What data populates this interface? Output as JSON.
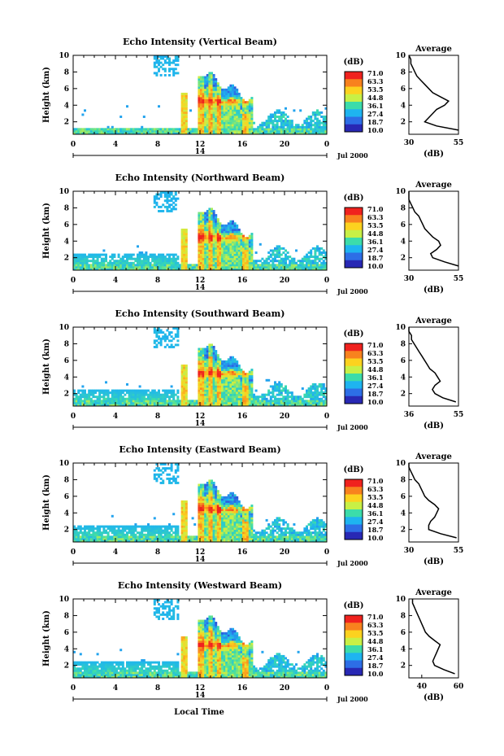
{
  "figure": {
    "xlabel": "Local Time",
    "date_label": "Jul 2000",
    "day_label": "14"
  },
  "colorbar": {
    "unit": "(dB)",
    "ticks": [
      "71.0",
      "63.3",
      "53.5",
      "44.8",
      "36.1",
      "27.4",
      "18.7",
      "10.0"
    ],
    "colors": [
      "#f0221e",
      "#f8821e",
      "#fcd21f",
      "#c8f046",
      "#3cdcaa",
      "#1eb4f0",
      "#2d6ee6",
      "#2828b4"
    ]
  },
  "chart_data": [
    {
      "type": "heatmap",
      "title": "Echo Intensity (Vertical Beam)",
      "ylabel": "Height (km)",
      "x_ticks": [
        "0",
        "4",
        "8",
        "12",
        "16",
        "20",
        "0"
      ],
      "xlim": [
        0,
        24
      ],
      "ylim": [
        0.5,
        10
      ],
      "y_ticks": [
        "2",
        "4",
        "6",
        "8",
        "10"
      ],
      "profile": {
        "title": "Average",
        "xlabel": "(dB)",
        "x_ticks": [
          "30",
          "55"
        ],
        "xlim": [
          30,
          55
        ],
        "heights": [
          1,
          1.5,
          2,
          2.5,
          3,
          3.5,
          4,
          4.5,
          5,
          5.5,
          6,
          6.5,
          7,
          7.5,
          8,
          8.5,
          9,
          9.5,
          10
        ],
        "values": [
          55,
          44,
          38,
          40,
          42,
          44,
          48,
          50,
          46,
          42,
          40,
          38,
          36,
          34,
          33,
          32,
          31,
          31,
          30
        ]
      }
    },
    {
      "type": "heatmap",
      "title": "Echo Intensity (Northward Beam)",
      "ylabel": "Height (km)",
      "x_ticks": [
        "0",
        "4",
        "8",
        "12",
        "16",
        "20",
        "0"
      ],
      "xlim": [
        0,
        24
      ],
      "ylim": [
        0.5,
        10
      ],
      "y_ticks": [
        "2",
        "4",
        "6",
        "8",
        "10"
      ],
      "profile": {
        "title": "Average",
        "xlabel": "(dB)",
        "x_ticks": [
          "30",
          "55"
        ],
        "xlim": [
          30,
          55
        ],
        "heights": [
          1,
          1.5,
          2,
          2.5,
          3,
          3.5,
          4,
          4.5,
          5,
          5.5,
          6,
          6.5,
          7,
          7.5,
          8,
          8.5,
          9,
          9.5,
          10
        ],
        "values": [
          55,
          48,
          42,
          41,
          44,
          46,
          45,
          42,
          40,
          38,
          37,
          36,
          35,
          33,
          32,
          31,
          30,
          30,
          30
        ]
      }
    },
    {
      "type": "heatmap",
      "title": "Echo Intensity (Southward Beam)",
      "ylabel": "Height (km)",
      "x_ticks": [
        "0",
        "4",
        "8",
        "12",
        "16",
        "20",
        "0"
      ],
      "xlim": [
        0,
        24
      ],
      "ylim": [
        0.5,
        10
      ],
      "y_ticks": [
        "2",
        "4",
        "6",
        "8",
        "10"
      ],
      "profile": {
        "title": "Average",
        "xlabel": "(dB)",
        "x_ticks": [
          "36",
          "55"
        ],
        "xlim": [
          36,
          55
        ],
        "heights": [
          1,
          1.5,
          2,
          2.5,
          3,
          3.5,
          4,
          4.5,
          5,
          5.5,
          6,
          6.5,
          7,
          7.5,
          8,
          8.5,
          9,
          9.5,
          10
        ],
        "values": [
          54,
          49,
          46,
          45,
          46,
          48,
          47,
          46,
          44,
          43,
          42,
          41,
          40,
          39,
          38,
          37,
          37,
          36,
          36
        ]
      }
    },
    {
      "type": "heatmap",
      "title": "Echo Intensity (Eastward Beam)",
      "ylabel": "Height (km)",
      "x_ticks": [
        "0",
        "4",
        "8",
        "12",
        "16",
        "20",
        "0"
      ],
      "xlim": [
        0,
        24
      ],
      "ylim": [
        0.5,
        10
      ],
      "y_ticks": [
        "2",
        "4",
        "6",
        "8",
        "10"
      ],
      "profile": {
        "title": "Average",
        "xlabel": "(dB)",
        "x_ticks": [
          "30",
          "55"
        ],
        "xlim": [
          30,
          55
        ],
        "heights": [
          1,
          1.5,
          2,
          2.5,
          3,
          3.5,
          4,
          4.5,
          5,
          5.5,
          6,
          6.5,
          7,
          7.5,
          8,
          8.5,
          9,
          9.5,
          10
        ],
        "values": [
          54,
          46,
          40,
          40,
          41,
          43,
          44,
          45,
          43,
          40,
          38,
          37,
          36,
          35,
          33,
          32,
          31,
          30,
          30
        ]
      }
    },
    {
      "type": "heatmap",
      "title": "Echo Intensity (Westward Beam)",
      "ylabel": "Height (km)",
      "x_ticks": [
        "0",
        "4",
        "8",
        "12",
        "16",
        "20",
        "0"
      ],
      "xlim": [
        0,
        24
      ],
      "ylim": [
        0.5,
        10
      ],
      "y_ticks": [
        "2",
        "4",
        "6",
        "8",
        "10"
      ],
      "profile": {
        "title": "Average",
        "xlabel": "(dB)",
        "x_ticks": [
          "40",
          "60"
        ],
        "xlim": [
          33,
          60
        ],
        "heights": [
          1,
          1.5,
          2,
          2.5,
          3,
          3.5,
          4,
          4.5,
          5,
          5.5,
          6,
          6.5,
          7,
          7.5,
          8,
          8.5,
          9,
          9.5,
          10
        ],
        "values": [
          58,
          52,
          47,
          46,
          47,
          48,
          49,
          50,
          47,
          44,
          42,
          41,
          40,
          39,
          38,
          37,
          36,
          35,
          35
        ]
      }
    }
  ]
}
